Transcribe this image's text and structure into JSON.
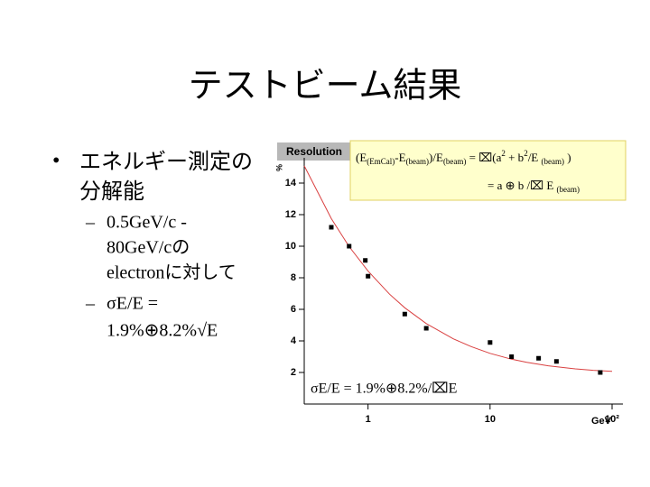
{
  "slide": {
    "title": "テストビーム結果",
    "bullet": [
      "エネルギー測定の",
      "分解能"
    ],
    "sub_bullets": [
      [
        "0.5GeV/c -",
        "80GeV/cの",
        "electronに対して"
      ],
      [
        "σE/E =",
        "1.9%⊕8.2%√E"
      ]
    ]
  },
  "chart_data": {
    "type": "scatter",
    "title": "Resolution",
    "xlabel": "GeV",
    "ylabel": "%",
    "x": [
      0.5,
      0.7,
      0.95,
      1,
      2,
      3,
      10,
      15,
      25,
      35,
      80
    ],
    "values": [
      11.2,
      10.0,
      9.1,
      8.1,
      5.7,
      4.8,
      3.9,
      3.0,
      2.9,
      2.7,
      2.0
    ],
    "color": "#000000",
    "fit": {
      "x": [
        0.3,
        0.5,
        0.7,
        1,
        1.5,
        2,
        3,
        5,
        7,
        10,
        15,
        20,
        30,
        50,
        70,
        100
      ],
      "values": [
        15.09,
        11.75,
        9.98,
        8.42,
        6.96,
        6.1,
        5.1,
        4.13,
        3.64,
        3.21,
        2.84,
        2.64,
        2.42,
        2.23,
        2.14,
        2.07
      ],
      "color": "#d94040"
    },
    "xlim": [
      0.3,
      100
    ],
    "ylim": [
      0,
      15.6
    ],
    "log_x": true,
    "xticks": [
      1,
      10,
      {
        "value": 100,
        "label": "10²"
      }
    ],
    "yticks": [
      2,
      4,
      6,
      8,
      10,
      12,
      14
    ],
    "formula_box": {
      "line1": [
        {
          "text": "(E"
        },
        {
          "text": "(EmCal)",
          "pos": "sub"
        },
        {
          "text": "-E"
        },
        {
          "text": "(beam)",
          "pos": "sub"
        },
        {
          "text": ")/E"
        },
        {
          "text": "(beam)",
          "pos": "sub"
        },
        {
          "text": " = ⌧(a"
        },
        {
          "text": "2",
          "pos": "sup"
        },
        {
          "text": " + b"
        },
        {
          "text": "2",
          "pos": "sup"
        },
        {
          "text": "/E "
        },
        {
          "text": "(beam)",
          "pos": "sub"
        },
        {
          "text": " )"
        }
      ],
      "line2": [
        {
          "text": "= a ⊕ b /⌧ E "
        },
        {
          "text": "(beam)",
          "pos": "sub"
        }
      ]
    },
    "annotation": "σE/E = 1.9%⊕8.2%/⌧E"
  }
}
